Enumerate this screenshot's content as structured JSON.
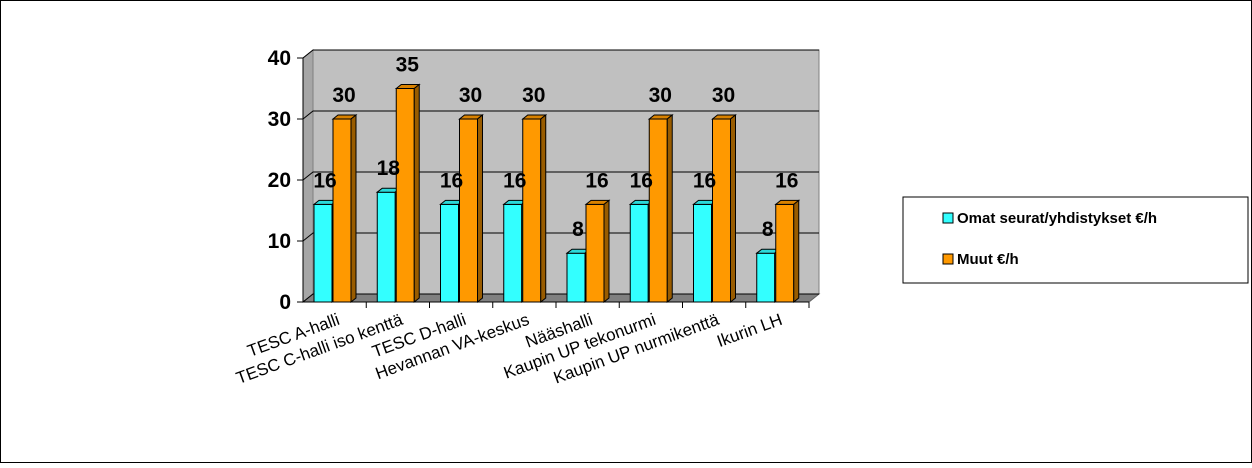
{
  "chart_data": {
    "type": "bar",
    "categories": [
      "TESC A-halli",
      "TESC C-halli iso kenttä",
      "TESC D-halli",
      "Hevannan VA-keskus",
      "Nääshalli",
      "Kaupin UP tekonurmi",
      "Kaupin UP nurmikenttä",
      "Ikurin LH"
    ],
    "series": [
      {
        "name": "Omat seurat/yhdistykset €/h",
        "values": [
          16,
          18,
          16,
          16,
          8,
          16,
          16,
          8
        ],
        "color": "#33ffff"
      },
      {
        "name": "Muut €/h",
        "values": [
          30,
          35,
          30,
          30,
          16,
          30,
          30,
          16
        ],
        "color": "#ff9900"
      }
    ],
    "yticks": [
      0,
      10,
      20,
      30,
      40
    ],
    "ylim": [
      0,
      40
    ],
    "grid": true,
    "legend": "right",
    "three_d": true,
    "wall_color": "#c0c0c0"
  }
}
